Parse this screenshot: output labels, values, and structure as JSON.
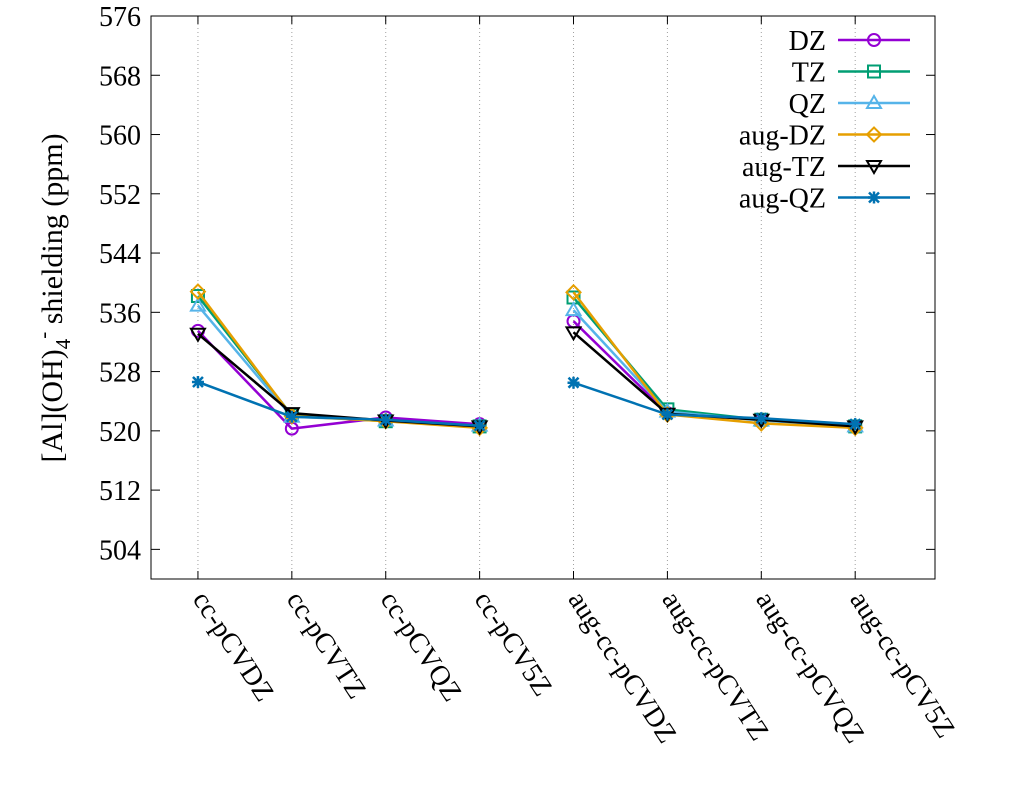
{
  "chart_data": {
    "type": "line",
    "title": "",
    "xlabel": "",
    "ylabel_parts": [
      "[Al](OH)",
      "4",
      "-",
      " shielding (ppm)"
    ],
    "ylabel": "[Al](OH)4- shielding (ppm)",
    "ylim": [
      500,
      576
    ],
    "yticks": [
      504,
      512,
      520,
      528,
      536,
      544,
      552,
      560,
      568,
      576
    ],
    "grid": "vertical-dotted",
    "legend": "top-right",
    "categories": [
      "cc-pCVDZ",
      "cc-pCVTZ",
      "cc-pCVQZ",
      "cc-pCV5Z",
      "aug-cc-pCVDZ",
      "aug-cc-pCVTZ",
      "aug-cc-pCVQZ",
      "aug-cc-pCV5Z"
    ],
    "x": [
      1,
      2,
      3,
      4,
      5,
      6,
      7,
      8
    ],
    "xlim": [
      0.5,
      8.85
    ],
    "series": [
      {
        "name": "DZ",
        "color": "#9400d3",
        "marker": "circle",
        "segments": [
          [
            1,
            2,
            3,
            4
          ],
          [
            5,
            6,
            7,
            8
          ]
        ],
        "values": [
          533.5,
          520.3,
          521.8,
          520.9,
          534.8,
          522.4,
          521.5,
          520.6
        ]
      },
      {
        "name": "TZ",
        "color": "#009e73",
        "marker": "square",
        "segments": [
          [
            1,
            2,
            3,
            4
          ],
          [
            5,
            6,
            7,
            8
          ]
        ],
        "values": [
          538.2,
          522.1,
          521.3,
          520.6,
          538.0,
          522.9,
          521.5,
          520.6
        ]
      },
      {
        "name": "QZ",
        "color": "#56b4e9",
        "marker": "triangle",
        "segments": [
          [
            1,
            2,
            3,
            4
          ],
          [
            5,
            6,
            7,
            8
          ]
        ],
        "values": [
          536.9,
          521.9,
          521.4,
          520.7,
          536.3,
          522.6,
          521.4,
          520.6
        ]
      },
      {
        "name": "aug-DZ",
        "color": "#e69f00",
        "marker": "diamond",
        "segments": [
          [
            1,
            2,
            3,
            4
          ],
          [
            5,
            6,
            7,
            8
          ]
        ],
        "values": [
          538.8,
          522.0,
          521.3,
          520.4,
          538.7,
          522.2,
          521.0,
          520.4
        ]
      },
      {
        "name": "aug-TZ",
        "color": "#000000",
        "marker": "triangle-down",
        "segments": [
          [
            1,
            2,
            3,
            4
          ],
          [
            5,
            6,
            7,
            8
          ]
        ],
        "values": [
          533.1,
          522.4,
          521.4,
          520.6,
          533.3,
          522.3,
          521.5,
          520.6
        ]
      },
      {
        "name": "aug-QZ",
        "color": "#0072b2",
        "marker": "star",
        "segments": [
          [
            1,
            2,
            3,
            4
          ],
          [
            5,
            6,
            7,
            8
          ]
        ],
        "values": [
          526.6,
          521.9,
          521.5,
          520.7,
          526.5,
          522.2,
          521.7,
          520.9
        ]
      }
    ]
  }
}
